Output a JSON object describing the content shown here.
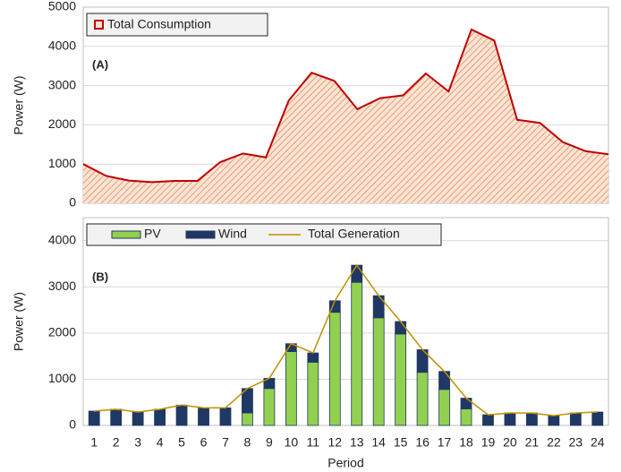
{
  "chart_data": [
    {
      "type": "area",
      "ylabel": "Power (W)",
      "annotation": "(A)",
      "series": [
        {
          "name": "Total Consumption",
          "color": "#c00000",
          "values": [
            1000,
            700,
            580,
            540,
            570,
            570,
            1050,
            1270,
            1170,
            2620,
            3330,
            3120,
            2400,
            2680,
            2750,
            3310,
            2850,
            4430,
            4150,
            2130,
            2050,
            1560,
            1330,
            1250
          ]
        }
      ],
      "ylim": [
        0,
        5000
      ],
      "yticks": [
        0,
        1000,
        2000,
        3000,
        4000,
        5000
      ],
      "grid": true,
      "legend": "top-left"
    },
    {
      "type": "bar",
      "stacked": true,
      "ylabel": "Power (W)",
      "xlabel": "Period",
      "annotation": "(B)",
      "categories": [
        "1",
        "2",
        "3",
        "4",
        "5",
        "6",
        "7",
        "8",
        "9",
        "10",
        "11",
        "12",
        "13",
        "14",
        "15",
        "16",
        "17",
        "18",
        "19",
        "20",
        "21",
        "22",
        "23",
        "24"
      ],
      "series": [
        {
          "name": "PV",
          "color": "#92d050",
          "values": [
            0,
            0,
            0,
            0,
            0,
            0,
            0,
            270,
            800,
            1600,
            1370,
            2450,
            3100,
            2330,
            1980,
            1150,
            780,
            360,
            0,
            0,
            0,
            0,
            0,
            0
          ]
        },
        {
          "name": "Wind",
          "color": "#1f3864",
          "values": [
            310,
            350,
            290,
            350,
            440,
            380,
            380,
            530,
            220,
            170,
            200,
            250,
            370,
            480,
            270,
            490,
            390,
            230,
            230,
            270,
            270,
            210,
            270,
            290
          ]
        },
        {
          "name": "Total Generation",
          "color": "#bf9000",
          "type": "line",
          "values": [
            310,
            350,
            290,
            350,
            440,
            380,
            380,
            800,
            1020,
            1770,
            1570,
            2700,
            3470,
            2810,
            2250,
            1640,
            1170,
            590,
            230,
            270,
            270,
            210,
            270,
            290
          ]
        }
      ],
      "ylim": [
        0,
        4500
      ],
      "yticks": [
        0,
        1000,
        2000,
        3000,
        4000
      ],
      "grid": true,
      "legend": "top-left"
    }
  ]
}
